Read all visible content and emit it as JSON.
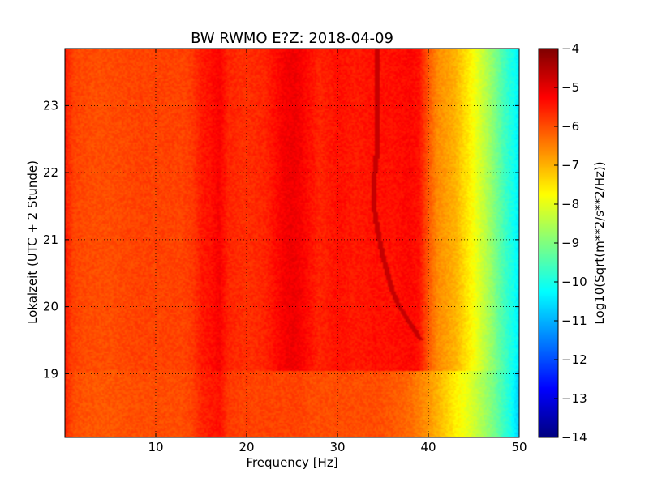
{
  "chart_data": {
    "type": "heatmap",
    "title": "BW RWMO E?Z: 2018-04-09",
    "xlabel": "Frequency [Hz]",
    "ylabel": "Lokalzeit (UTC + 2 Stunde)",
    "xlim": [
      0,
      50
    ],
    "ylim": [
      23.85,
      18.05
    ],
    "x_ticks": [
      10,
      20,
      30,
      40,
      50
    ],
    "x_tick_labels": [
      "10",
      "20",
      "30",
      "40",
      "50"
    ],
    "y_ticks": [
      19,
      20,
      21,
      22,
      23
    ],
    "y_tick_labels": [
      "19",
      "20",
      "21",
      "22",
      "23"
    ],
    "grid": true,
    "colorbar": {
      "label": "Log10(Sqrt(m**2/s**2/Hz))",
      "range": [
        -14,
        -4
      ],
      "colormap": "jet",
      "ticks": [
        -4,
        -5,
        -6,
        -7,
        -8,
        -9,
        -10,
        -11,
        -12,
        -13,
        -14
      ],
      "tick_labels": [
        "−4",
        "−5",
        "−6",
        "−7",
        "−8",
        "−9",
        "−10",
        "−11",
        "−12",
        "−13",
        "−14"
      ]
    },
    "spectrum_profile": {
      "frequency_hz": [
        0,
        1,
        3,
        5,
        8,
        10,
        13,
        14,
        15,
        16,
        17,
        18,
        20,
        22,
        24,
        25,
        26,
        27,
        28,
        29,
        30,
        32,
        34,
        36,
        38,
        39,
        40,
        41,
        42,
        43,
        44,
        45,
        46,
        47,
        48,
        49,
        50
      ],
      "level_before_19h": [
        -5.6,
        -6.0,
        -6.1,
        -6.1,
        -6.0,
        -6.0,
        -6.0,
        -5.9,
        -5.6,
        -5.5,
        -5.4,
        -5.8,
        -5.9,
        -5.9,
        -5.9,
        -5.9,
        -5.9,
        -6.0,
        -6.0,
        -6.0,
        -6.0,
        -6.0,
        -6.0,
        -6.1,
        -6.3,
        -6.5,
        -6.7,
        -7.0,
        -7.3,
        -7.6,
        -7.9,
        -8.2,
        -8.6,
        -9.0,
        -9.5,
        -10.0,
        -10.8
      ],
      "level_after_19h": [
        -5.5,
        -5.9,
        -6.0,
        -6.0,
        -5.9,
        -5.9,
        -5.9,
        -5.8,
        -5.5,
        -5.4,
        -5.2,
        -5.6,
        -5.7,
        -5.6,
        -5.2,
        -5.1,
        -5.2,
        -5.4,
        -5.6,
        -5.5,
        -5.4,
        -5.5,
        -5.4,
        -5.4,
        -5.3,
        -5.4,
        -6.1,
        -6.6,
        -6.8,
        -7.0,
        -7.4,
        -7.8,
        -8.3,
        -8.8,
        -9.4,
        -9.9,
        -10.4
      ]
    },
    "tonal_line": {
      "level": -4.7,
      "time_hours": [
        19.5,
        19.75,
        20.0,
        20.25,
        20.5,
        20.75,
        21.0,
        21.25,
        21.5,
        21.75,
        22.0,
        22.25,
        22.5,
        23.0,
        23.5,
        23.85
      ],
      "frequency_hz": [
        39.2,
        38.0,
        36.8,
        36.0,
        35.5,
        35.0,
        34.6,
        34.3,
        34.0,
        34.0,
        34.1,
        34.3,
        34.4,
        34.4,
        34.3,
        34.3
      ]
    }
  }
}
